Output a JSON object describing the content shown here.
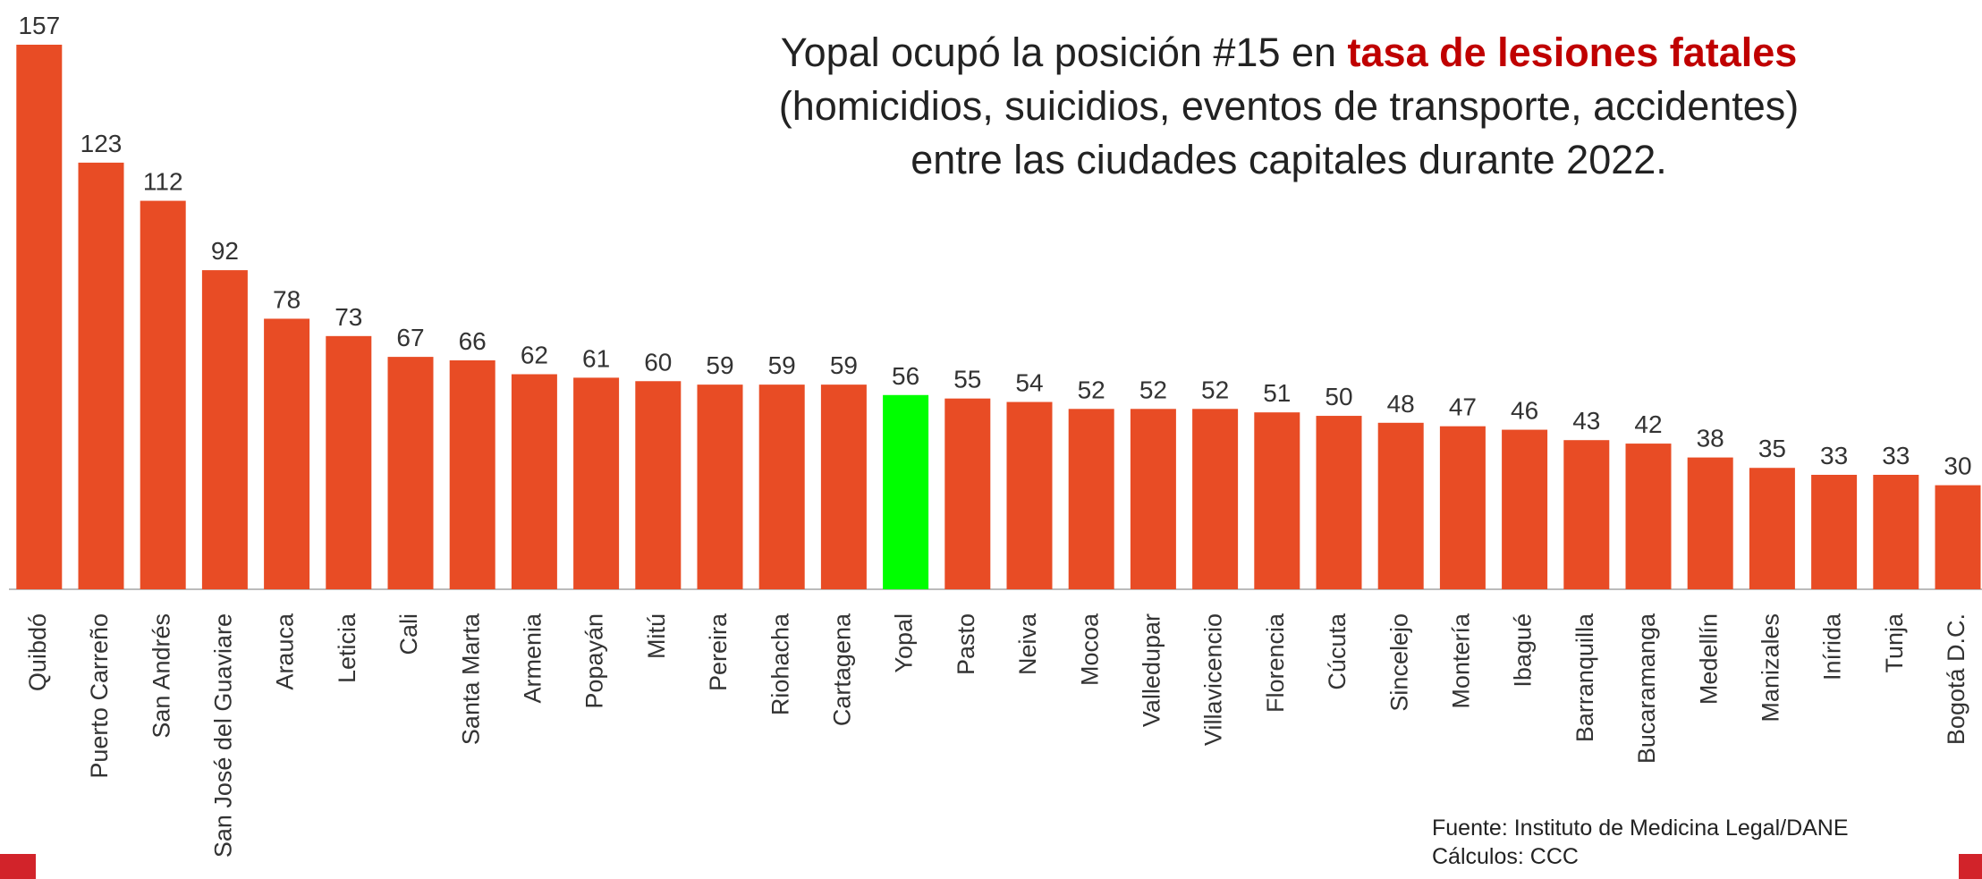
{
  "chart_data": {
    "type": "bar",
    "title_lines": [
      "Yopal ocupó la posición #15 en",
      "tasa de lesiones fatales",
      "(homicidios, suicidios, eventos de transporte, accidentes)",
      "entre las ciudades capitales durante 2022."
    ],
    "title_highlight_color": "#c00000",
    "source": [
      "Fuente: Instituto de Medicina Legal/DANE",
      "Cálculos: CCC"
    ],
    "categories": [
      "Quibdó",
      "Puerto Carreño",
      "San Andrés",
      "San José del Guaviare",
      "Arauca",
      "Leticia",
      "Cali",
      "Santa Marta",
      "Armenia",
      "Popayán",
      "Mitú",
      "Pereira",
      "Riohacha",
      "Cartagena",
      "Yopal",
      "Pasto",
      "Neiva",
      "Mocoa",
      "Valledupar",
      "Villavicencio",
      "Florencia",
      "Cúcuta",
      "Sincelejo",
      "Montería",
      "Ibagué",
      "Barranquilla",
      "Bucaramanga",
      "Medellín",
      "Manizales",
      "Inírida",
      "Tunja",
      "Bogotá D.C."
    ],
    "values": [
      157,
      123,
      112,
      92,
      78,
      73,
      67,
      66,
      62,
      61,
      60,
      59,
      59,
      59,
      56,
      55,
      54,
      52,
      52,
      52,
      51,
      50,
      48,
      47,
      46,
      43,
      42,
      38,
      35,
      33,
      33,
      30
    ],
    "colors": [
      "#e84c25",
      "#e84c25",
      "#e84c25",
      "#e84c25",
      "#e84c25",
      "#e84c25",
      "#e84c25",
      "#e84c25",
      "#e84c25",
      "#e84c25",
      "#e84c25",
      "#e84c25",
      "#e84c25",
      "#e84c25",
      "#00ff00",
      "#e84c25",
      "#e84c25",
      "#e84c25",
      "#e84c25",
      "#e84c25",
      "#e84c25",
      "#e84c25",
      "#e84c25",
      "#e84c25",
      "#e84c25",
      "#e84c25",
      "#e84c25",
      "#e84c25",
      "#e84c25",
      "#e84c25",
      "#e84c25",
      "#e84c25"
    ],
    "ylim": [
      0,
      157
    ]
  }
}
